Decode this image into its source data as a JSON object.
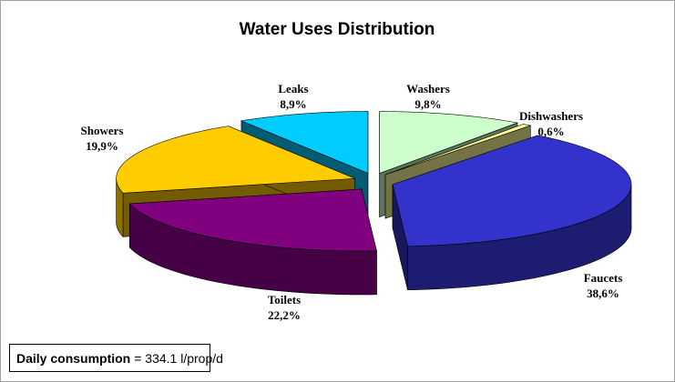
{
  "chart_data": {
    "type": "pie",
    "title": "Water Uses Distribution",
    "categories": [
      "Washers",
      "Dishwashers",
      "Faucets",
      "Toilets",
      "Showers",
      "Leaks"
    ],
    "values": [
      9.8,
      0.6,
      38.6,
      22.2,
      19.9,
      8.9
    ],
    "value_labels": [
      "9,8%",
      "0,6%",
      "38,6%",
      "22,2%",
      "19,9%",
      "8,9%"
    ],
    "colors": [
      "#ccffcc",
      "#ffff99",
      "#3333cc",
      "#800080",
      "#ffcc00",
      "#00ccff"
    ],
    "footnote": {
      "label": "Daily consumption",
      "text": "= 334.1 l/prop/d"
    }
  }
}
